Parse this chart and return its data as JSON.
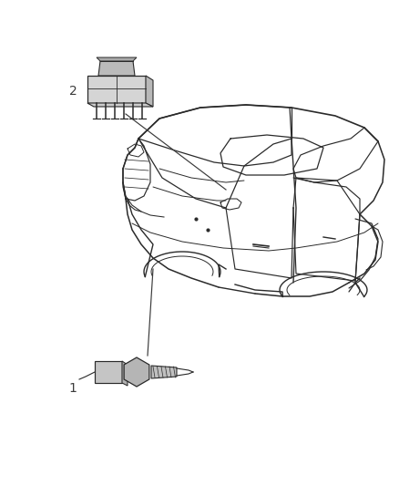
{
  "background_color": "#ffffff",
  "fig_width": 4.38,
  "fig_height": 5.33,
  "dpi": 100,
  "label1_text": "1",
  "label2_text": "2",
  "line_color": "#3a3a3a",
  "label_fontsize": 10,
  "car_lw": 1.0,
  "car_color": "#2a2a2a",
  "component_fill": "#c8c8c8",
  "component_edge": "#2a2a2a"
}
